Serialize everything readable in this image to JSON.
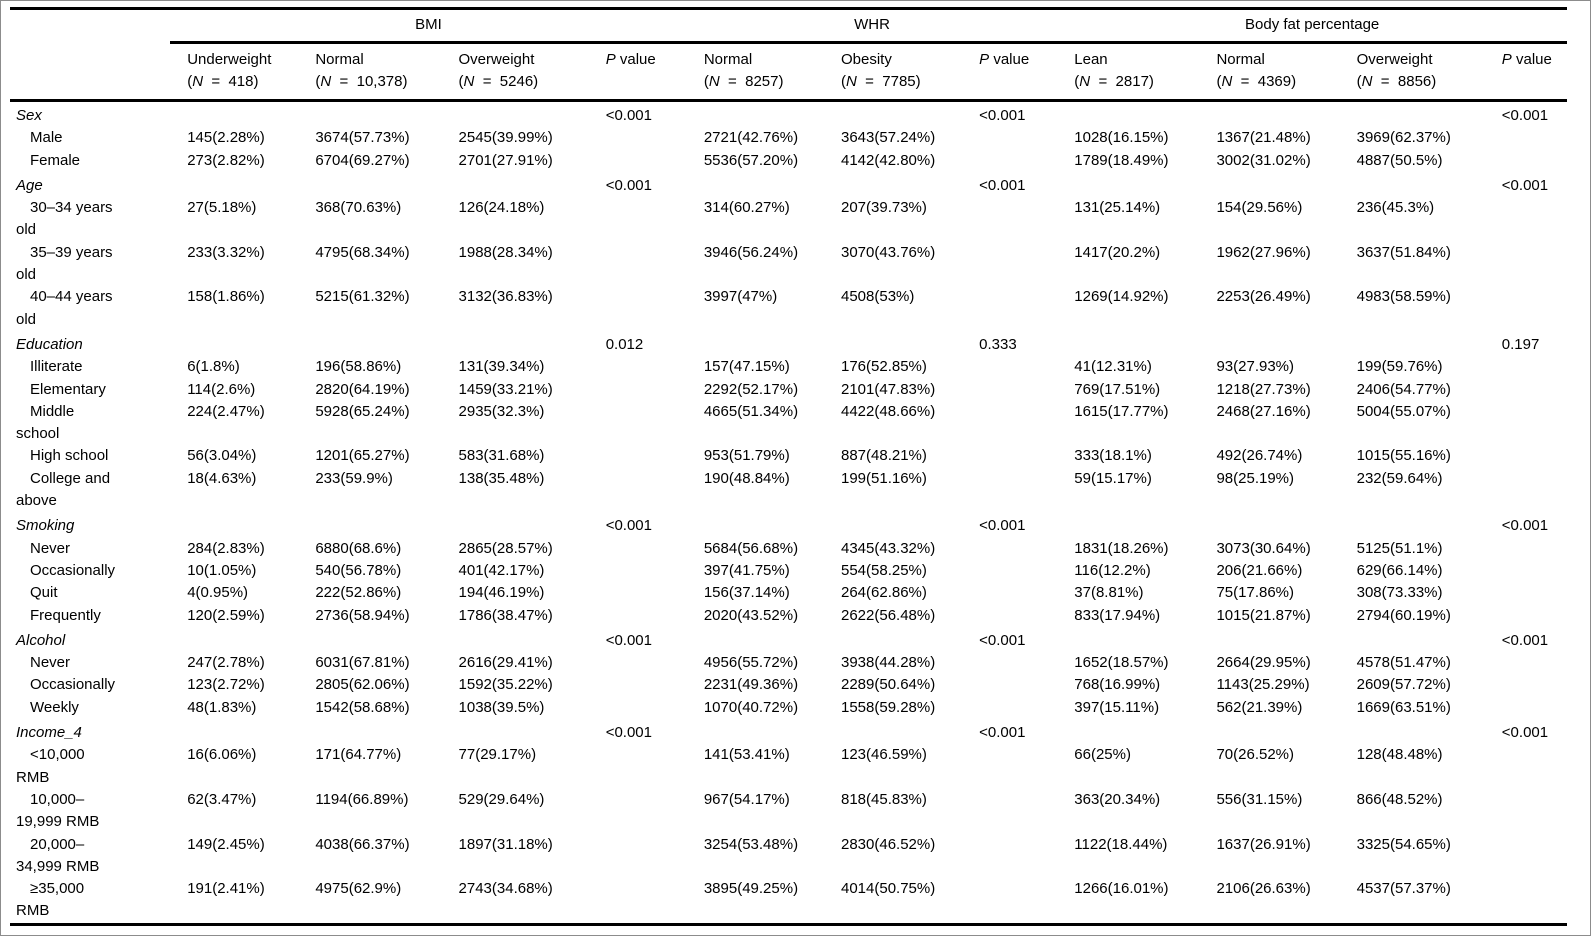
{
  "table": {
    "groups": [
      {
        "label": "BMI",
        "p_label": "P value",
        "columns": [
          {
            "label": "Underweight",
            "n": "418"
          },
          {
            "label": "Normal",
            "n": "10,378"
          },
          {
            "label": "Overweight",
            "n": "5246"
          }
        ]
      },
      {
        "label": "WHR",
        "p_label": "P value",
        "columns": [
          {
            "label": "Normal",
            "n": "8257"
          },
          {
            "label": "Obesity",
            "n": "7785"
          }
        ]
      },
      {
        "label": "Body fat percentage",
        "p_label": "P value",
        "columns": [
          {
            "label": "Lean",
            "n": "2817"
          },
          {
            "label": "Normal",
            "n": "4369"
          },
          {
            "label": "Overweight",
            "n": "8856"
          }
        ]
      }
    ],
    "rows": [
      {
        "type": "section",
        "label": "Sex",
        "p": [
          "<0.001",
          "<0.001",
          "<0.001"
        ]
      },
      {
        "type": "data",
        "label": "Male",
        "cells": [
          "145(2.28%)",
          "3674(57.73%)",
          "2545(39.99%)",
          "2721(42.76%)",
          "3643(57.24%)",
          "1028(16.15%)",
          "1367(21.48%)",
          "3969(62.37%)"
        ]
      },
      {
        "type": "data",
        "label": "Female",
        "cells": [
          "273(2.82%)",
          "6704(69.27%)",
          "2701(27.91%)",
          "5536(57.20%)",
          "4142(42.80%)",
          "1789(18.49%)",
          "3002(31.02%)",
          "4887(50.5%)"
        ]
      },
      {
        "type": "section",
        "label": "Age",
        "p": [
          "<0.001",
          "<0.001",
          "<0.001"
        ]
      },
      {
        "type": "data",
        "label": "30–34 years old",
        "cells": [
          "27(5.18%)",
          "368(70.63%)",
          "126(24.18%)",
          "314(60.27%)",
          "207(39.73%)",
          "131(25.14%)",
          "154(29.56%)",
          "236(45.3%)"
        ]
      },
      {
        "type": "data",
        "label": "35–39 years old",
        "cells": [
          "233(3.32%)",
          "4795(68.34%)",
          "1988(28.34%)",
          "3946(56.24%)",
          "3070(43.76%)",
          "1417(20.2%)",
          "1962(27.96%)",
          "3637(51.84%)"
        ]
      },
      {
        "type": "data",
        "label": "40–44 years old",
        "cells": [
          "158(1.86%)",
          "5215(61.32%)",
          "3132(36.83%)",
          "3997(47%)",
          "4508(53%)",
          "1269(14.92%)",
          "2253(26.49%)",
          "4983(58.59%)"
        ]
      },
      {
        "type": "section",
        "label": "Education",
        "p": [
          "0.012",
          "0.333",
          "0.197"
        ]
      },
      {
        "type": "data",
        "label": "Illiterate",
        "cells": [
          "6(1.8%)",
          "196(58.86%)",
          "131(39.34%)",
          "157(47.15%)",
          "176(52.85%)",
          "41(12.31%)",
          "93(27.93%)",
          "199(59.76%)"
        ]
      },
      {
        "type": "data",
        "label": "Elementary",
        "cells": [
          "114(2.6%)",
          "2820(64.19%)",
          "1459(33.21%)",
          "2292(52.17%)",
          "2101(47.83%)",
          "769(17.51%)",
          "1218(27.73%)",
          "2406(54.77%)"
        ]
      },
      {
        "type": "data",
        "label": "Middle school",
        "cells": [
          "224(2.47%)",
          "5928(65.24%)",
          "2935(32.3%)",
          "4665(51.34%)",
          "4422(48.66%)",
          "1615(17.77%)",
          "2468(27.16%)",
          "5004(55.07%)"
        ]
      },
      {
        "type": "data",
        "label": "High school",
        "cells": [
          "56(3.04%)",
          "1201(65.27%)",
          "583(31.68%)",
          "953(51.79%)",
          "887(48.21%)",
          "333(18.1%)",
          "492(26.74%)",
          "1015(55.16%)"
        ]
      },
      {
        "type": "data",
        "label": "College and above",
        "cells": [
          "18(4.63%)",
          "233(59.9%)",
          "138(35.48%)",
          "190(48.84%)",
          "199(51.16%)",
          "59(15.17%)",
          "98(25.19%)",
          "232(59.64%)"
        ]
      },
      {
        "type": "section",
        "label": "Smoking",
        "p": [
          "<0.001",
          "<0.001",
          "<0.001"
        ]
      },
      {
        "type": "data",
        "label": "Never",
        "cells": [
          "284(2.83%)",
          "6880(68.6%)",
          "2865(28.57%)",
          "5684(56.68%)",
          "4345(43.32%)",
          "1831(18.26%)",
          "3073(30.64%)",
          "5125(51.1%)"
        ]
      },
      {
        "type": "data",
        "label": "Occasionally",
        "cells": [
          "10(1.05%)",
          "540(56.78%)",
          "401(42.17%)",
          "397(41.75%)",
          "554(58.25%)",
          "116(12.2%)",
          "206(21.66%)",
          "629(66.14%)"
        ]
      },
      {
        "type": "data",
        "label": "Quit",
        "cells": [
          "4(0.95%)",
          "222(52.86%)",
          "194(46.19%)",
          "156(37.14%)",
          "264(62.86%)",
          "37(8.81%)",
          "75(17.86%)",
          "308(73.33%)"
        ]
      },
      {
        "type": "data",
        "label": "Frequently",
        "cells": [
          "120(2.59%)",
          "2736(58.94%)",
          "1786(38.47%)",
          "2020(43.52%)",
          "2622(56.48%)",
          "833(17.94%)",
          "1015(21.87%)",
          "2794(60.19%)"
        ]
      },
      {
        "type": "section",
        "label": "Alcohol",
        "p": [
          "<0.001",
          "<0.001",
          "<0.001"
        ]
      },
      {
        "type": "data",
        "label": "Never",
        "cells": [
          "247(2.78%)",
          "6031(67.81%)",
          "2616(29.41%)",
          "4956(55.72%)",
          "3938(44.28%)",
          "1652(18.57%)",
          "2664(29.95%)",
          "4578(51.47%)"
        ]
      },
      {
        "type": "data",
        "label": "Occasionally",
        "cells": [
          "123(2.72%)",
          "2805(62.06%)",
          "1592(35.22%)",
          "2231(49.36%)",
          "2289(50.64%)",
          "768(16.99%)",
          "1143(25.29%)",
          "2609(57.72%)"
        ]
      },
      {
        "type": "data",
        "label": "Weekly",
        "cells": [
          "48(1.83%)",
          "1542(58.68%)",
          "1038(39.5%)",
          "1070(40.72%)",
          "1558(59.28%)",
          "397(15.11%)",
          "562(21.39%)",
          "1669(63.51%)"
        ]
      },
      {
        "type": "section",
        "label": "Income_4",
        "p": [
          "<0.001",
          "<0.001",
          "<0.001"
        ]
      },
      {
        "type": "data",
        "label": "<10,000 RMB",
        "cells": [
          "16(6.06%)",
          "171(64.77%)",
          "77(29.17%)",
          "141(53.41%)",
          "123(46.59%)",
          "66(25%)",
          "70(26.52%)",
          "128(48.48%)"
        ]
      },
      {
        "type": "data",
        "label": "10,000–19,999 RMB",
        "cells": [
          "62(3.47%)",
          "1194(66.89%)",
          "529(29.64%)",
          "967(54.17%)",
          "818(45.83%)",
          "363(20.34%)",
          "556(31.15%)",
          "866(48.52%)"
        ]
      },
      {
        "type": "data",
        "label": "20,000–34,999 RMB",
        "cells": [
          "149(2.45%)",
          "4038(66.37%)",
          "1897(31.18%)",
          "3254(53.48%)",
          "2830(46.52%)",
          "1122(18.44%)",
          "1637(26.91%)",
          "3325(54.65%)"
        ]
      },
      {
        "type": "data",
        "label": "≥35,000 RMB",
        "cells": [
          "191(2.41%)",
          "4975(62.9%)",
          "2743(34.68%)",
          "3895(49.25%)",
          "4014(50.75%)",
          "1266(16.01%)",
          "2106(26.63%)",
          "4537(57.37%)"
        ]
      }
    ]
  }
}
